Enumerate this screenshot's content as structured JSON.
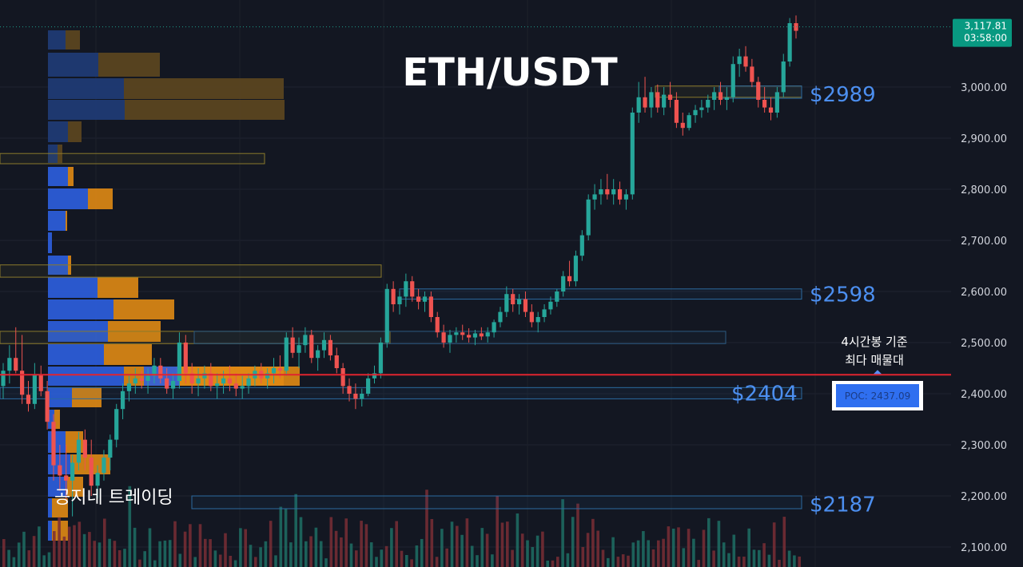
{
  "chart_data": {
    "type": "candlestick",
    "title": "ETH/USDT",
    "ylim": [
      2080,
      3180
    ],
    "y_ticks": [
      {
        "value": 3000,
        "label": "3,000.00"
      },
      {
        "value": 2900,
        "label": "2,900.00"
      },
      {
        "value": 2800,
        "label": "2,800.00"
      },
      {
        "value": 2700,
        "label": "2,700.00"
      },
      {
        "value": 2600,
        "label": "2,600.00"
      },
      {
        "value": 2500,
        "label": "2,500.00"
      },
      {
        "value": 2400,
        "label": "2,400.00"
      },
      {
        "value": 2300,
        "label": "2,300.00"
      },
      {
        "value": 2200,
        "label": "2,200.00"
      },
      {
        "value": 2100,
        "label": "2,100.00"
      }
    ],
    "current_price": {
      "price_label": "3,117.81",
      "time_label": "03:58:00",
      "value": 3117.81
    },
    "levels": [
      {
        "label": "$2989",
        "value": 2989
      },
      {
        "label": "$2598",
        "value": 2598
      },
      {
        "label": "$2404",
        "value": 2404
      },
      {
        "label": "$2187",
        "value": 2187
      }
    ],
    "poc": {
      "label": "POC: 2437.09",
      "value": 2437.09
    },
    "annotation": {
      "line1": "4시간봉 기준",
      "line2": "최다 매물대"
    },
    "watermark": "공지네 트레이딩",
    "candles": [
      [
        2415,
        2460,
        2390,
        2445
      ],
      [
        2445,
        2495,
        2420,
        2470
      ],
      [
        2470,
        2530,
        2440,
        2445
      ],
      [
        2445,
        2515,
        2380,
        2398
      ],
      [
        2398,
        2425,
        2365,
        2380
      ],
      [
        2380,
        2460,
        2370,
        2438
      ],
      [
        2438,
        2455,
        2395,
        2405
      ],
      [
        2405,
        2425,
        2330,
        2345
      ],
      [
        2345,
        2360,
        2230,
        2260
      ],
      [
        2260,
        2300,
        2210,
        2240
      ],
      [
        2240,
        2300,
        2190,
        2230
      ],
      [
        2230,
        2280,
        2160,
        2265
      ],
      [
        2265,
        2325,
        2250,
        2310
      ],
      [
        2310,
        2330,
        2250,
        2275
      ],
      [
        2275,
        2310,
        2200,
        2220
      ],
      [
        2220,
        2260,
        2195,
        2245
      ],
      [
        2245,
        2290,
        2230,
        2275
      ],
      [
        2275,
        2320,
        2250,
        2310
      ],
      [
        2310,
        2380,
        2295,
        2370
      ],
      [
        2370,
        2420,
        2350,
        2405
      ],
      [
        2405,
        2435,
        2385,
        2420
      ],
      [
        2420,
        2450,
        2400,
        2430
      ],
      [
        2430,
        2445,
        2410,
        2425
      ],
      [
        2425,
        2450,
        2400,
        2435
      ],
      [
        2435,
        2470,
        2420,
        2455
      ],
      [
        2455,
        2470,
        2420,
        2430
      ],
      [
        2430,
        2450,
        2400,
        2410
      ],
      [
        2410,
        2440,
        2390,
        2425
      ],
      [
        2425,
        2520,
        2410,
        2500
      ],
      [
        2500,
        2515,
        2420,
        2440
      ],
      [
        2440,
        2460,
        2400,
        2420
      ],
      [
        2420,
        2450,
        2395,
        2430
      ],
      [
        2430,
        2455,
        2410,
        2440
      ],
      [
        2440,
        2460,
        2405,
        2415
      ],
      [
        2415,
        2440,
        2390,
        2420
      ],
      [
        2420,
        2445,
        2400,
        2430
      ],
      [
        2430,
        2455,
        2405,
        2420
      ],
      [
        2420,
        2440,
        2395,
        2410
      ],
      [
        2410,
        2435,
        2390,
        2415
      ],
      [
        2415,
        2440,
        2400,
        2430
      ],
      [
        2430,
        2455,
        2415,
        2445
      ],
      [
        2445,
        2460,
        2420,
        2430
      ],
      [
        2430,
        2450,
        2410,
        2440
      ],
      [
        2440,
        2470,
        2420,
        2450
      ],
      [
        2450,
        2475,
        2430,
        2445
      ],
      [
        2445,
        2520,
        2435,
        2510
      ],
      [
        2510,
        2530,
        2470,
        2480
      ],
      [
        2480,
        2510,
        2450,
        2495
      ],
      [
        2495,
        2530,
        2480,
        2515
      ],
      [
        2515,
        2525,
        2460,
        2470
      ],
      [
        2470,
        2495,
        2445,
        2485
      ],
      [
        2485,
        2520,
        2470,
        2505
      ],
      [
        2505,
        2515,
        2465,
        2475
      ],
      [
        2475,
        2490,
        2440,
        2450
      ],
      [
        2450,
        2460,
        2400,
        2415
      ],
      [
        2415,
        2430,
        2385,
        2400
      ],
      [
        2400,
        2420,
        2370,
        2390
      ],
      [
        2390,
        2410,
        2375,
        2400
      ],
      [
        2400,
        2440,
        2395,
        2430
      ],
      [
        2430,
        2455,
        2420,
        2440
      ],
      [
        2440,
        2510,
        2430,
        2500
      ],
      [
        2500,
        2615,
        2490,
        2605
      ],
      [
        2605,
        2620,
        2560,
        2575
      ],
      [
        2575,
        2600,
        2555,
        2590
      ],
      [
        2590,
        2635,
        2570,
        2620
      ],
      [
        2620,
        2630,
        2580,
        2590
      ],
      [
        2590,
        2605,
        2565,
        2580
      ],
      [
        2580,
        2600,
        2560,
        2590
      ],
      [
        2590,
        2600,
        2540,
        2550
      ],
      [
        2550,
        2560,
        2510,
        2520
      ],
      [
        2520,
        2535,
        2490,
        2500
      ],
      [
        2500,
        2525,
        2480,
        2515
      ],
      [
        2515,
        2530,
        2500,
        2520
      ],
      [
        2520,
        2535,
        2505,
        2515
      ],
      [
        2515,
        2528,
        2500,
        2510
      ],
      [
        2510,
        2525,
        2495,
        2518
      ],
      [
        2518,
        2530,
        2505,
        2512
      ],
      [
        2512,
        2530,
        2500,
        2520
      ],
      [
        2520,
        2545,
        2510,
        2540
      ],
      [
        2540,
        2570,
        2530,
        2560
      ],
      [
        2560,
        2610,
        2550,
        2595
      ],
      [
        2595,
        2605,
        2560,
        2575
      ],
      [
        2575,
        2595,
        2555,
        2585
      ],
      [
        2585,
        2600,
        2550,
        2560
      ],
      [
        2560,
        2575,
        2530,
        2540
      ],
      [
        2540,
        2560,
        2520,
        2550
      ],
      [
        2550,
        2575,
        2540,
        2565
      ],
      [
        2565,
        2590,
        2555,
        2580
      ],
      [
        2580,
        2605,
        2570,
        2600
      ],
      [
        2600,
        2640,
        2590,
        2630
      ],
      [
        2630,
        2660,
        2610,
        2620
      ],
      [
        2620,
        2680,
        2610,
        2670
      ],
      [
        2670,
        2720,
        2660,
        2710
      ],
      [
        2710,
        2790,
        2700,
        2780
      ],
      [
        2780,
        2810,
        2760,
        2790
      ],
      [
        2790,
        2820,
        2770,
        2800
      ],
      [
        2800,
        2830,
        2780,
        2790
      ],
      [
        2790,
        2820,
        2770,
        2800
      ],
      [
        2800,
        2815,
        2770,
        2780
      ],
      [
        2780,
        2800,
        2760,
        2790
      ],
      [
        2790,
        2960,
        2780,
        2950
      ],
      [
        2950,
        3010,
        2930,
        2980
      ],
      [
        2980,
        3020,
        2950,
        2960
      ],
      [
        2960,
        3000,
        2940,
        2990
      ],
      [
        2990,
        3005,
        2950,
        2960
      ],
      [
        2960,
        3000,
        2945,
        2985
      ],
      [
        2985,
        3010,
        2960,
        2975
      ],
      [
        2975,
        2990,
        2920,
        2930
      ],
      [
        2930,
        2950,
        2905,
        2920
      ],
      [
        2920,
        2950,
        2915,
        2945
      ],
      [
        2945,
        2965,
        2930,
        2955
      ],
      [
        2955,
        2975,
        2940,
        2960
      ],
      [
        2960,
        2985,
        2950,
        2975
      ],
      [
        2975,
        3000,
        2955,
        2990
      ],
      [
        2990,
        3010,
        2965,
        2975
      ],
      [
        2975,
        3000,
        2955,
        2980
      ],
      [
        2980,
        3060,
        2970,
        3045
      ],
      [
        3045,
        3075,
        3020,
        3060
      ],
      [
        3060,
        3080,
        3030,
        3040
      ],
      [
        3040,
        3055,
        3000,
        3010
      ],
      [
        3010,
        3020,
        2960,
        2975
      ],
      [
        2975,
        3000,
        2950,
        2960
      ],
      [
        2960,
        2980,
        2935,
        2950
      ],
      [
        2950,
        3000,
        2940,
        2990
      ],
      [
        2990,
        3065,
        2980,
        3050
      ],
      [
        3050,
        3135,
        3040,
        3125
      ],
      [
        3125,
        3140,
        3095,
        3110
      ]
    ]
  }
}
